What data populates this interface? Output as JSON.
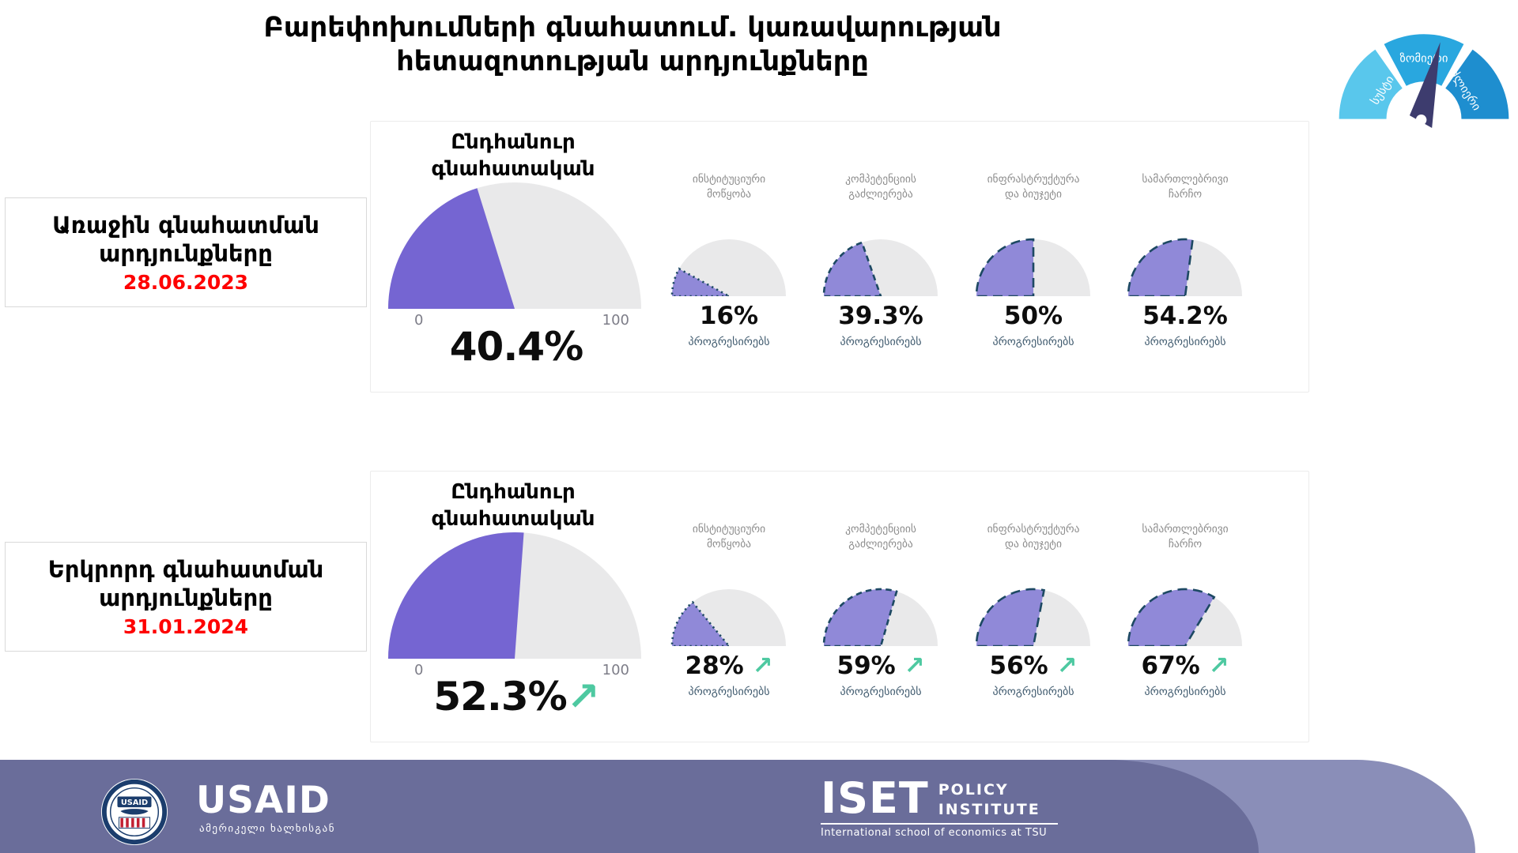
{
  "title": {
    "line1": "Բարեփոխումների գնահատում. կառավարության",
    "line2": "հետազոտության արդյունքները"
  },
  "meter_icon": {
    "segments": [
      {
        "label": "სუსტი",
        "color": "#59c7ec"
      },
      {
        "label": "ზომიერი",
        "color": "#29a7df"
      },
      {
        "label": "ძლიერი",
        "color": "#1e8ecf"
      }
    ],
    "needle_color": "#3d3c6e"
  },
  "boxes": [
    {
      "line1": "Առաջին գնահատման",
      "line2": "արդյունքները",
      "date": "28.06.2023"
    },
    {
      "line1": "Երկրորդ գնահատման",
      "line2": "արդյունքները",
      "date": "31.01.2024"
    }
  ],
  "panels": [
    {
      "main": {
        "label1": "Ընդհանուր",
        "label2": "գնահատական",
        "min": "0",
        "max": "100",
        "value": 40.4,
        "display": "40.4%"
      },
      "subs": [
        {
          "label1": "ინსტიტუციური",
          "label2": "მოწყობა",
          "value": 16,
          "display": "16%",
          "status": "პროგრესირებს",
          "dash": "3 6"
        },
        {
          "label1": "კომპეტენციის",
          "label2": "გაძლიერება",
          "value": 39.3,
          "display": "39.3%",
          "status": "პროგრესირებს",
          "dash": "10 7"
        },
        {
          "label1": "ინფრასტრუქტურა",
          "label2": "და ბიუჯეტი",
          "value": 50,
          "display": "50%",
          "status": "პროგრესირებს",
          "dash": "16 10"
        },
        {
          "label1": "სამართლებრივი",
          "label2": "ჩარჩო",
          "value": 54.2,
          "display": "54.2%",
          "status": "პროგრესირებს",
          "dash": "16 10"
        }
      ]
    },
    {
      "main": {
        "label1": "Ընդհանուր",
        "label2": "գնահատական",
        "min": "0",
        "max": "100",
        "value": 52.3,
        "display": "52.3%",
        "arrow": "↗"
      },
      "subs": [
        {
          "label1": "ინსტიტუციური",
          "label2": "მოწყობა",
          "value": 28,
          "display": "28%",
          "arrow": "↗",
          "status": "პროგრესირებს",
          "dash": "3 6"
        },
        {
          "label1": "კომპეტენციის",
          "label2": "გაძლიერება",
          "value": 59,
          "display": "59%",
          "arrow": "↗",
          "status": "პროგრესირებს",
          "dash": "10 7"
        },
        {
          "label1": "ინფრასტრუქტურა",
          "label2": "და ბიუჯეტი",
          "value": 56,
          "display": "56%",
          "arrow": "↗",
          "status": "პროგრესირებს",
          "dash": "16 10"
        },
        {
          "label1": "სამართლებრივი",
          "label2": "ჩარჩო",
          "value": 67,
          "display": "67%",
          "arrow": "↗",
          "status": "პროგრესირებს",
          "dash": "16 10"
        }
      ]
    }
  ],
  "colors": {
    "main_fill": "#7565d2",
    "sub_fill": "#9089d8",
    "track": "#e9e9ea",
    "sub_stroke": "#1d4963",
    "arrow_green": "#4ec9a1",
    "date_red": "#fe0000",
    "footer_dark": "#6a6d9a",
    "footer_light": "#8a8eb8"
  },
  "footer": {
    "usaid": {
      "wordmark": "USAID",
      "seal_text": "USAID",
      "tagline": "ამერიკელი ხალხისგან"
    },
    "iset": {
      "wordmark": "ISET",
      "line1": "POLICY",
      "line2": "INSTITUTE",
      "subtitle": "International school of economics at TSU"
    }
  },
  "chart_data": [
    {
      "type": "gauge",
      "group_title": "Առաջին գնահատման արդյունքները (28.06.2023)",
      "range": [
        0,
        100
      ],
      "gauges": [
        {
          "label": "Ընդհանուր գնահատական",
          "value": 40.4
        },
        {
          "label": "ინსტიტუციური მოწყობა",
          "value": 16,
          "status": "პროგრესირებს"
        },
        {
          "label": "კომპეტენციის გაძლიერება",
          "value": 39.3,
          "status": "პროგრესირებს"
        },
        {
          "label": "ინფრასტრუქტურა და ბიუჯეტი",
          "value": 50,
          "status": "პროგრესირებს"
        },
        {
          "label": "სამართლებრივი ჩარჩო",
          "value": 54.2,
          "status": "პროგრესირებს"
        }
      ]
    },
    {
      "type": "gauge",
      "group_title": "Երկրորդ գնահատման արդյունքները (31.01.2024)",
      "range": [
        0,
        100
      ],
      "trend": "up",
      "gauges": [
        {
          "label": "Ընդհանուր գնահատական",
          "value": 52.3
        },
        {
          "label": "ინსტიტუციური მოწყობა",
          "value": 28,
          "status": "პროგრესირებს"
        },
        {
          "label": "კომპეტენციის გაძლიერება",
          "value": 59,
          "status": "პროგრესირებს"
        },
        {
          "label": "ინფრასტრუქტურა და ბიუჯეტი",
          "value": 56,
          "status": "პროგრესირებს"
        },
        {
          "label": "სამართლებრივი ჩარჩო",
          "value": 67,
          "status": "პროგრესირებს"
        }
      ]
    }
  ]
}
